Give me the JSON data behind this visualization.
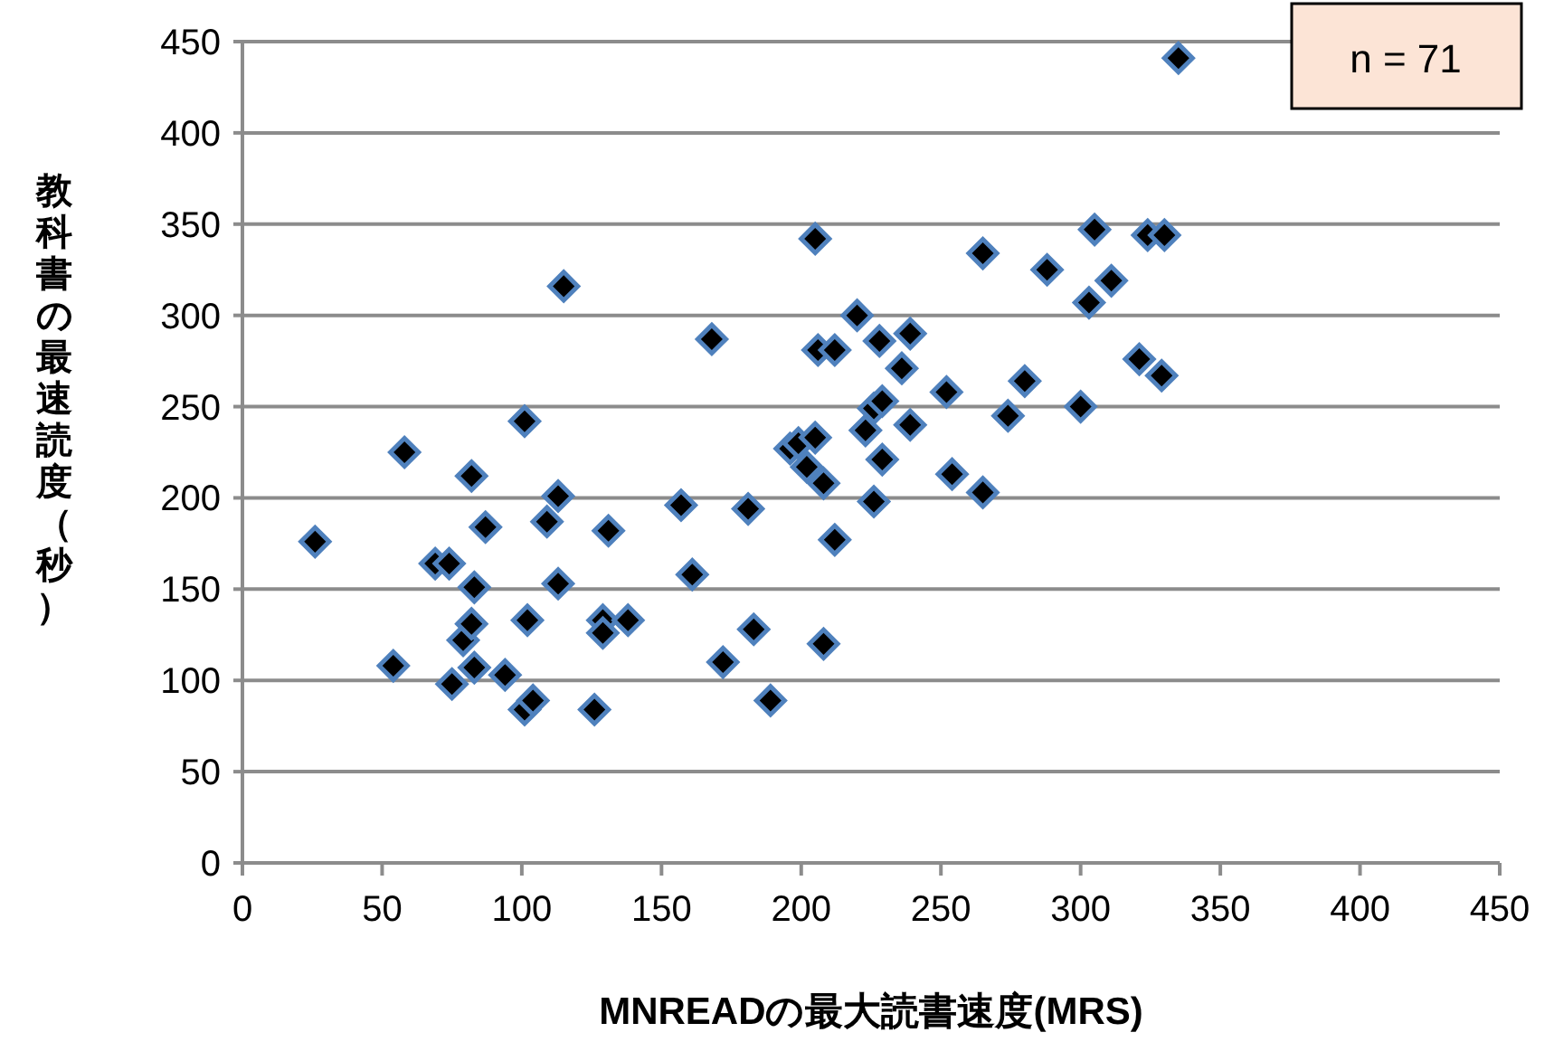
{
  "chart_data": {
    "type": "scatter",
    "xlabel": "MNREADの最大読書速度(MRS)",
    "ylabel": "教科書の最速読度（秒）",
    "annotations": [
      "n = 71"
    ],
    "xlim": [
      0,
      450
    ],
    "xticks": [
      0,
      50,
      100,
      150,
      200,
      250,
      300,
      350,
      400,
      450
    ],
    "ylim": [
      0,
      450
    ],
    "yticks": [
      0,
      50,
      100,
      150,
      200,
      250,
      300,
      350,
      400,
      450
    ],
    "grid": "y",
    "marker": "diamond",
    "series": [
      {
        "color": "#000000",
        "x": [
          26,
          54,
          58,
          69,
          74,
          75,
          79,
          82,
          82,
          83,
          83,
          87,
          94,
          101,
          101,
          104,
          102,
          109,
          113,
          113,
          115,
          126,
          129,
          129,
          131,
          138,
          157,
          161,
          168,
          172,
          181,
          183,
          189,
          196,
          199,
          205,
          202,
          208,
          205,
          208,
          212,
          206,
          212,
          220,
          223,
          226,
          226,
          229,
          229,
          228,
          236,
          239,
          239,
          252,
          254,
          265,
          265,
          274,
          280,
          288,
          300,
          303,
          305,
          311,
          321,
          324,
          330,
          329,
          335
        ],
        "values": [
          176,
          108,
          225,
          164,
          164,
          98,
          122,
          131,
          212,
          151,
          107,
          184,
          103,
          242,
          84,
          89,
          133,
          187,
          201,
          153,
          316,
          84,
          133,
          126,
          182,
          133,
          196,
          158,
          287,
          110,
          194,
          128,
          89,
          227,
          230,
          233,
          217,
          208,
          342,
          120,
          177,
          281,
          281,
          300,
          237,
          198,
          249,
          253,
          221,
          286,
          271,
          290,
          240,
          258,
          213,
          203,
          334,
          245,
          264,
          325,
          250,
          307,
          347,
          319,
          276,
          344,
          344,
          267,
          441
        ]
      }
    ]
  }
}
